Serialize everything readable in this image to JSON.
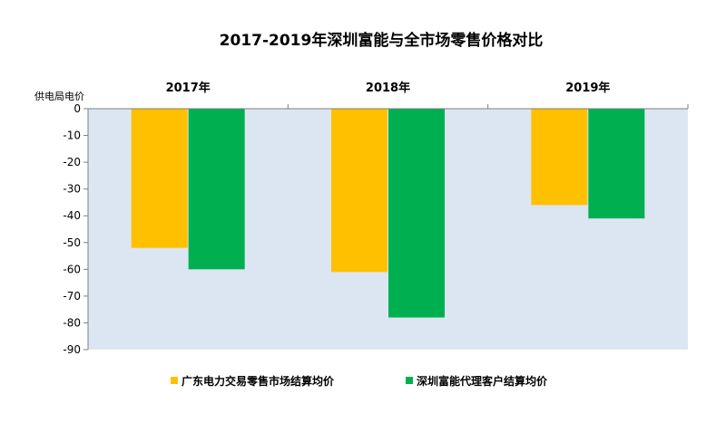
{
  "chart_data": {
    "type": "bar",
    "title": "2017-2019年深圳富能与全市场零售价格对比",
    "ylabel": "供电局电价",
    "categories": [
      "2017年",
      "2018年",
      "2019年"
    ],
    "ylim": [
      -90,
      0
    ],
    "yticks": [
      0,
      -10,
      -20,
      -30,
      -40,
      -50,
      -60,
      -70,
      -80,
      -90
    ],
    "series": [
      {
        "name": "广东电力交易零售市场结算均价",
        "color": "#FFC000",
        "values": [
          -52,
          -61,
          -36
        ]
      },
      {
        "name": "深圳富能代理客户结算均价",
        "color": "#00B050",
        "values": [
          -60,
          -78,
          -41
        ]
      }
    ],
    "plot_background": "#DCE6F2",
    "grid": false,
    "legend_position": "bottom"
  }
}
